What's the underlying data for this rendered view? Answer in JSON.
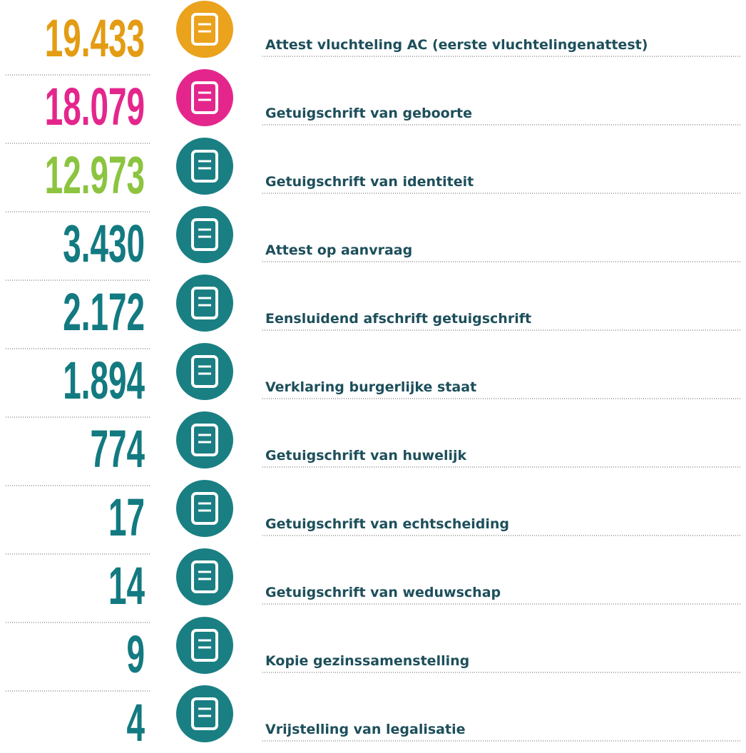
{
  "rows": [
    {
      "number": "19.433",
      "label": "Attest vluchteling AC (eerste vluchtelingenattest)",
      "color": "#e39c13",
      "icon_color": "#eba21c"
    },
    {
      "number": "18.079",
      "label": "Getuigschrift van geboorte",
      "color": "#e4268c",
      "icon_color": "#e4268c"
    },
    {
      "number": "12.973",
      "label": "Getuigschrift van identiteit",
      "color": "#8cc43f",
      "icon_color": "#1a7f83"
    },
    {
      "number": "3.430",
      "label": "Attest op aanvraag",
      "color": "#127a80",
      "icon_color": "#1a7f83"
    },
    {
      "number": "2.172",
      "label": "Eensluidend afschrift getuigschrift",
      "color": "#127a80",
      "icon_color": "#1a7f83"
    },
    {
      "number": "1.894",
      "label": "Verklaring burgerlijke staat",
      "color": "#127a80",
      "icon_color": "#1a7f83"
    },
    {
      "number": "774",
      "label": "Getuigschrift van huwelijk",
      "color": "#127a80",
      "icon_color": "#1a7f83"
    },
    {
      "number": "17",
      "label": "Getuigschrift van echtscheiding",
      "color": "#127a80",
      "icon_color": "#1a7f83"
    },
    {
      "number": "14",
      "label": "Getuigschrift van weduwschap",
      "color": "#127a80",
      "icon_color": "#1a7f83"
    },
    {
      "number": "9",
      "label": "Kopie gezinssamenstelling",
      "color": "#127a80",
      "icon_color": "#1a7f83"
    },
    {
      "number": "4",
      "label": "Vrijstelling van legalisatie",
      "color": "#127a80",
      "icon_color": "#1a7f83"
    }
  ]
}
